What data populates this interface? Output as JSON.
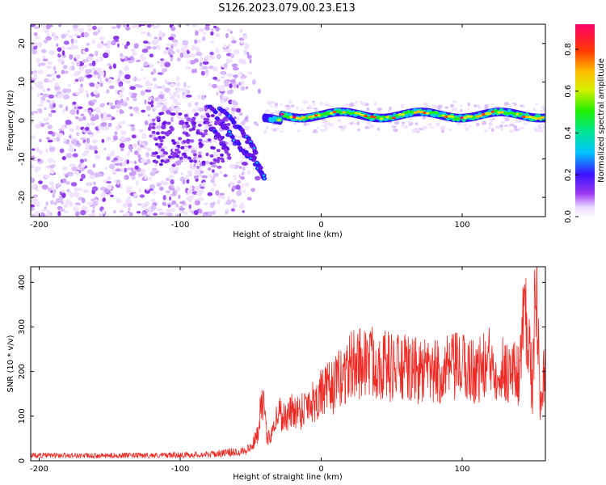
{
  "title": "S126.2023.079.00.23.E13",
  "colors": {
    "series": "#ee2a24",
    "background": "#ffffff"
  },
  "chart_data": [
    {
      "type": "heatmap",
      "title": "",
      "xlabel": "Height of straight line (km)",
      "ylabel": "Frequency (Hz)",
      "xlim": [
        -206,
        159
      ],
      "ylim": [
        -25,
        25
      ],
      "xticks": [
        "-200",
        "-100",
        "0",
        "100"
      ],
      "xtick_values": [
        -200,
        -100,
        0,
        100
      ],
      "yticks": [
        "-20",
        "-10",
        "0",
        "10",
        "20"
      ],
      "ytick_values": [
        -20,
        -10,
        0,
        10,
        20
      ],
      "colorbar": {
        "label": "Normalized spectral amplitude",
        "range": [
          0,
          0.92
        ],
        "ticks": [
          "0.0",
          "0.2",
          "0.4",
          "0.6",
          "0.8"
        ],
        "tick_values": [
          0.0,
          0.2,
          0.4,
          0.6,
          0.8
        ],
        "colormap": "rainbow (white-violet-blue-cyan-green-yellow-orange-red-magenta)"
      },
      "regions": [
        {
          "description": "diffuse low-amplitude speckle",
          "x_range": [
            -206,
            -62
          ],
          "y_range": [
            -25,
            25
          ],
          "amplitude": 0.1
        },
        {
          "description": "two diagonal streaks",
          "x_range": [
            -80,
            -40
          ],
          "y_range": [
            -15,
            4
          ],
          "amplitude": 0.2
        },
        {
          "description": "narrow band near 0-2 Hz",
          "x_range": [
            -40,
            159
          ],
          "y_range": [
            -1,
            4
          ],
          "amplitude_range": [
            0.2,
            0.9
          ]
        }
      ]
    },
    {
      "type": "line",
      "title": "",
      "xlabel": "Height of straight line (km)",
      "ylabel": "SNR (10 * v/v)",
      "xlim": [
        -206,
        159
      ],
      "ylim": [
        0,
        435
      ],
      "xticks": [
        "-200",
        "-100",
        "0",
        "100"
      ],
      "xtick_values": [
        -200,
        -100,
        0,
        100
      ],
      "yticks": [
        "0",
        "100",
        "200",
        "300",
        "400"
      ],
      "ytick_values": [
        0,
        100,
        200,
        300,
        400
      ],
      "grid": false,
      "series": [
        {
          "color": "#ee2a24",
          "x": [
            -206,
            -180,
            -160,
            -140,
            -120,
            -100,
            -80,
            -60,
            -50,
            -45,
            -42,
            -40,
            -38,
            -35,
            -30,
            -25,
            -20,
            -15,
            -10,
            -5,
            0,
            10,
            20,
            30,
            40,
            50,
            60,
            70,
            80,
            90,
            100,
            110,
            120,
            130,
            140,
            145,
            150,
            152,
            155,
            159
          ],
          "y": [
            12,
            12,
            11,
            12,
            12,
            13,
            14,
            20,
            28,
            60,
            160,
            90,
            45,
            70,
            110,
            95,
            115,
            110,
            130,
            135,
            150,
            170,
            210,
            225,
            220,
            210,
            205,
            200,
            195,
            205,
            210,
            200,
            220,
            205,
            195,
            360,
            150,
            430,
            140,
            230
          ]
        }
      ]
    }
  ]
}
